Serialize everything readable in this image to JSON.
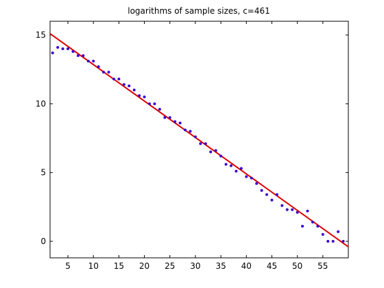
{
  "chart_data": {
    "type": "scatter",
    "title": "logarithms of sample sizes, c=461",
    "xlabel": "",
    "ylabel": "",
    "xlim": [
      1.5,
      60
    ],
    "ylim": [
      -1.2,
      16
    ],
    "xticks": [
      5,
      10,
      15,
      20,
      25,
      30,
      35,
      40,
      45,
      50,
      55
    ],
    "yticks": [
      0,
      5,
      10,
      15
    ],
    "grid": false,
    "colors": {
      "points": "#3a00cc",
      "fit_line": "#dd0000",
      "axes": "#000000"
    },
    "series": [
      {
        "type": "scatter",
        "x": [
          2,
          3,
          4,
          5,
          6,
          7,
          8,
          9,
          10,
          11,
          12,
          13,
          14,
          15,
          16,
          17,
          18,
          19,
          20,
          21,
          22,
          23,
          24,
          25,
          26,
          27,
          28,
          29,
          30,
          31,
          32,
          33,
          34,
          35,
          36,
          37,
          38,
          39,
          40,
          41,
          42,
          43,
          44,
          45,
          46,
          47,
          48,
          49,
          50,
          51,
          52,
          53,
          54,
          55,
          56,
          57,
          58,
          59
        ],
        "y": [
          13.7,
          14.1,
          14.0,
          14.0,
          13.8,
          13.5,
          13.5,
          13.1,
          13.1,
          12.7,
          12.3,
          12.3,
          11.8,
          11.8,
          11.4,
          11.3,
          11.0,
          10.6,
          10.5,
          10.0,
          10.0,
          9.6,
          9.0,
          9.0,
          8.7,
          8.6,
          8.1,
          8.0,
          7.6,
          7.1,
          7.1,
          6.5,
          6.6,
          6.2,
          5.6,
          5.5,
          5.1,
          5.3,
          4.7,
          4.6,
          4.2,
          3.7,
          3.4,
          3.0,
          3.4,
          2.6,
          2.3,
          2.3,
          2.1,
          1.1,
          2.2,
          1.4,
          1.1,
          0.5,
          0.0,
          0.0,
          0.7,
          0.0
        ]
      },
      {
        "type": "line",
        "x": [
          1.5,
          60
        ],
        "y": [
          15.1,
          -0.4
        ]
      }
    ]
  }
}
